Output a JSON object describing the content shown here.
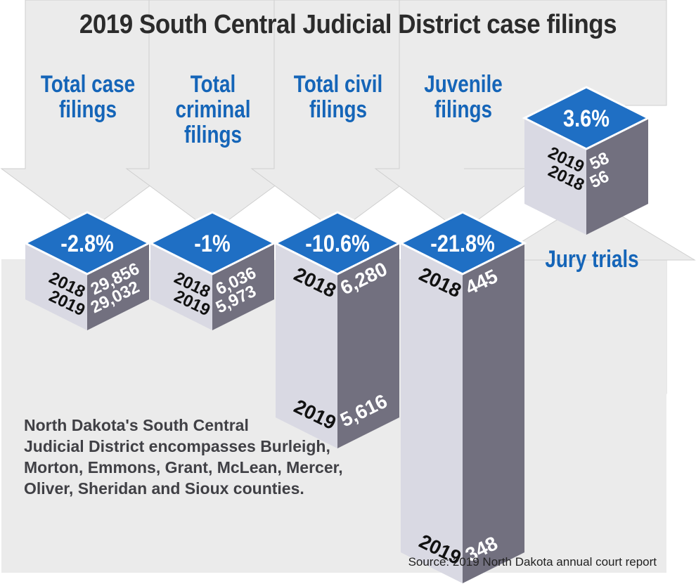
{
  "title": "2019 South Central Judicial District case filings",
  "categories_header": [
    "Total case\nfilings",
    "Total\ncriminal\nfilings",
    "Total civil\nfilings",
    "Juvenile\nfilings"
  ],
  "jury_label": "Jury trials",
  "note": "North Dakota's South Central\nJudicial District encompasses Burleigh,\nMorton, Emmons, Grant, McLean, Mercer,\nOliver, Sheridan and Sioux counties.",
  "source": "Source: 2019 North Dakota annual court report",
  "colors": {
    "blue": "#1565b8",
    "top_face": "#1f6fc4",
    "left_face": "#d9d9e3",
    "right_face": "#72707f",
    "background_arrow": "#ebebeb"
  },
  "chart_data": {
    "type": "bar",
    "title": "2019 South Central Judicial District case filings",
    "categories": [
      "Total case filings",
      "Total criminal filings",
      "Total civil filings",
      "Juvenile filings",
      "Jury trials"
    ],
    "series": [
      {
        "name": "2018",
        "values": [
          29856,
          6036,
          6280,
          445,
          56
        ]
      },
      {
        "name": "2019",
        "values": [
          29032,
          5973,
          5616,
          348,
          58
        ]
      }
    ],
    "year_labels": [
      "2018",
      "2019"
    ],
    "value_labels_2018": [
      "29,856",
      "6,036",
      "6,280",
      "445",
      "56"
    ],
    "value_labels_2019": [
      "29,032",
      "5,973",
      "5,616",
      "348",
      "58"
    ],
    "percent_change": [
      "-2.8%",
      "-1%",
      "-10.6%",
      "-21.8%",
      "3.6%"
    ]
  }
}
